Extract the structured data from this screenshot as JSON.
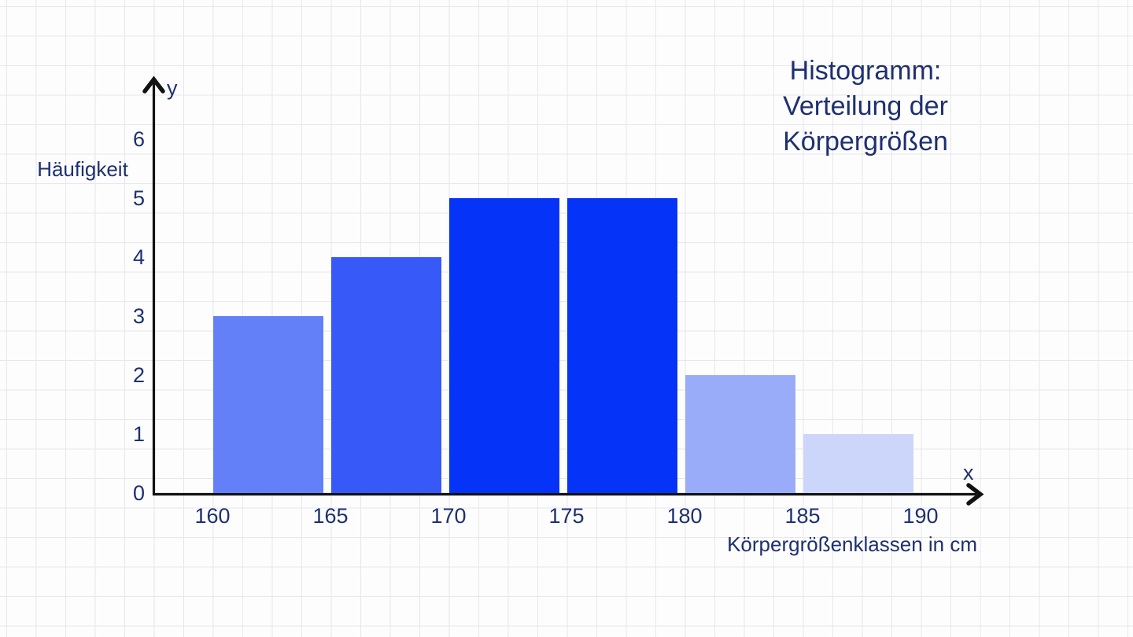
{
  "page": {
    "background_color": "#fdfdfd",
    "grid_line_color": "#e8e8ea",
    "text_color": "#1e3070",
    "axis_color": "#121212"
  },
  "title": {
    "text": "Histogramm:\nVerteilung der\nKörpergrößen"
  },
  "chart_data": {
    "type": "bar",
    "subtype": "histogram",
    "title": "Histogramm: Verteilung der Körpergrößen",
    "xlabel": "Körpergrößenklassen in cm",
    "ylabel": "Häufigkeit",
    "x_axis_letter": "x",
    "y_axis_letter": "y",
    "bin_edges": [
      160,
      165,
      170,
      175,
      180,
      185,
      190
    ],
    "categories": [
      "160–165",
      "165–170",
      "170–175",
      "175–180",
      "180–185",
      "185–190"
    ],
    "values": [
      3,
      4,
      5,
      5,
      2,
      1
    ],
    "bar_colors": [
      "#6380f8",
      "#3759f8",
      "#0533f7",
      "#0533f7",
      "#99acfa",
      "#ccd6fb"
    ],
    "x_tick_labels": [
      "160",
      "165",
      "170",
      "175",
      "180",
      "185",
      "190"
    ],
    "y_tick_labels": [
      "0",
      "1",
      "2",
      "3",
      "4",
      "5",
      "6"
    ],
    "ylim": [
      0,
      6
    ],
    "grid": true,
    "legend": false
  }
}
